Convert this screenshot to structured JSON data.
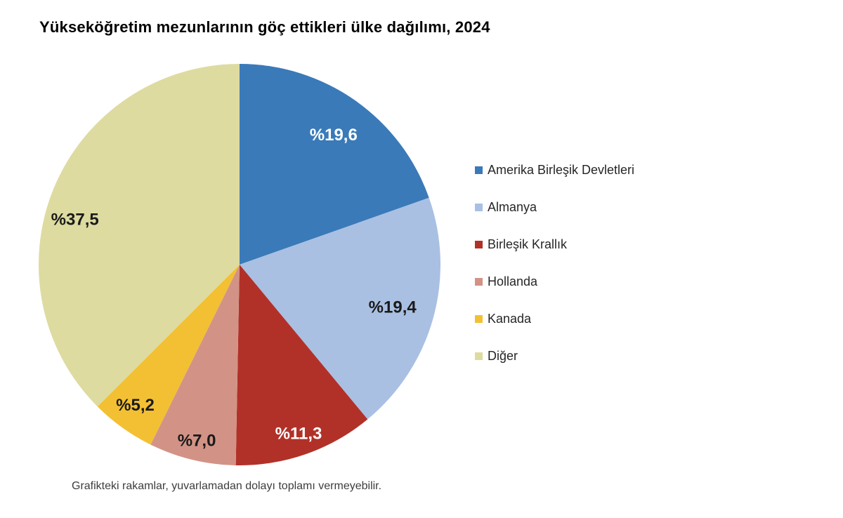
{
  "chart_data": {
    "type": "pie",
    "title": "Yükseköğretim mezunlarının göç ettikleri ülke dağılımı, 2024",
    "footnote": "Grafikteki rakamlar, yuvarlamadan dolayı toplamı vermeyebilir.",
    "direction": "clockwise",
    "start_angle_deg": 0,
    "legend_position": "right",
    "grid": false,
    "slices": [
      {
        "id": "abd",
        "label": "Amerika Birleşik Devletleri",
        "value": 19.6,
        "display": "%19,6",
        "color": "#3A7AB8",
        "label_color": "#FFFFFF"
      },
      {
        "id": "almanya",
        "label": "Almanya",
        "value": 19.4,
        "display": "%19,4",
        "color": "#A9C0E2",
        "label_color": "#1A1A1A"
      },
      {
        "id": "birlesik-krallik",
        "label": "Birleşik Krallık",
        "value": 11.3,
        "display": "%11,3",
        "color": "#B13129",
        "label_color": "#FFFFFF"
      },
      {
        "id": "hollanda",
        "label": "Hollanda",
        "value": 7.0,
        "display": "%7,0",
        "color": "#D29386",
        "label_color": "#1A1A1A"
      },
      {
        "id": "kanada",
        "label": "Kanada",
        "value": 5.2,
        "display": "%5,2",
        "color": "#F3C033",
        "label_color": "#1A1A1A"
      },
      {
        "id": "diger",
        "label": "Diğer",
        "value": 37.5,
        "display": "%37,5",
        "color": "#DDDBA0",
        "label_color": "#1A1A1A"
      }
    ]
  }
}
